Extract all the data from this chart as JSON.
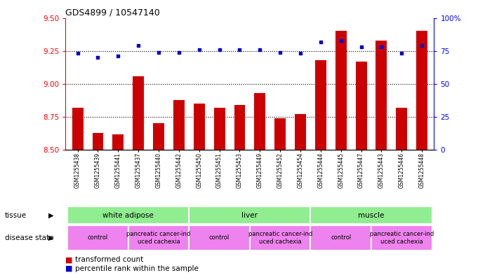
{
  "title": "GDS4899 / 10547140",
  "samples": [
    "GSM1255438",
    "GSM1255439",
    "GSM1255441",
    "GSM1255437",
    "GSM1255440",
    "GSM1255442",
    "GSM1255450",
    "GSM1255451",
    "GSM1255453",
    "GSM1255449",
    "GSM1255452",
    "GSM1255454",
    "GSM1255444",
    "GSM1255445",
    "GSM1255447",
    "GSM1255443",
    "GSM1255446",
    "GSM1255448"
  ],
  "red_values": [
    8.82,
    8.63,
    8.62,
    9.06,
    8.7,
    8.88,
    8.85,
    8.82,
    8.84,
    8.93,
    8.74,
    8.77,
    9.18,
    9.4,
    9.17,
    9.33,
    8.82,
    9.4
  ],
  "blue_values": [
    73,
    70,
    71,
    79,
    74,
    74,
    76,
    76,
    76,
    76,
    74,
    73,
    82,
    83,
    78,
    78,
    73,
    79
  ],
  "ylim_left": [
    8.5,
    9.5
  ],
  "ylim_right": [
    0,
    100
  ],
  "yticks_left": [
    8.5,
    8.75,
    9.0,
    9.25,
    9.5
  ],
  "yticks_right": [
    0,
    25,
    50,
    75,
    100
  ],
  "grid_values": [
    8.75,
    9.0,
    9.25
  ],
  "bar_color": "#CC0000",
  "dot_color": "#0000CC",
  "bar_width": 0.55,
  "tissue_regions": [
    {
      "label": "white adipose",
      "start": 0,
      "end": 5
    },
    {
      "label": "liver",
      "start": 6,
      "end": 11
    },
    {
      "label": "muscle",
      "start": 12,
      "end": 17
    }
  ],
  "tissue_color": "#90EE90",
  "disease_regions": [
    {
      "label": "control",
      "start": 0,
      "end": 2
    },
    {
      "label": "pancreatic cancer-ind\nuced cachexia",
      "start": 3,
      "end": 5
    },
    {
      "label": "control",
      "start": 6,
      "end": 8
    },
    {
      "label": "pancreatic cancer-ind\nuced cachexia",
      "start": 9,
      "end": 11
    },
    {
      "label": "control",
      "start": 12,
      "end": 14
    },
    {
      "label": "pancreatic cancer-ind\nuced cachexia",
      "start": 15,
      "end": 17
    }
  ],
  "disease_color": "#EE82EE",
  "sample_bg_color": "#D3D3D3",
  "legend_items": [
    {
      "label": "transformed count",
      "color": "#CC0000"
    },
    {
      "label": "percentile rank within the sample",
      "color": "#0000CC"
    }
  ]
}
